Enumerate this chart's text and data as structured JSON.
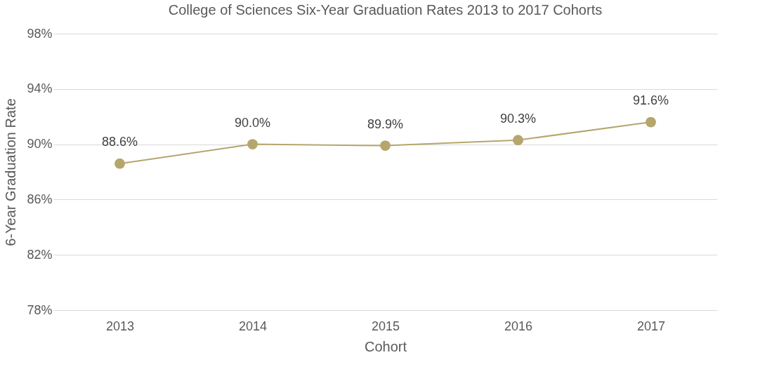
{
  "chart_data": {
    "type": "line",
    "title": "College of Sciences Six-Year Graduation Rates 2013 to 2017 Cohorts",
    "xlabel": "Cohort",
    "ylabel": "6-Year Graduation Rate",
    "categories": [
      "2013",
      "2014",
      "2015",
      "2016",
      "2017"
    ],
    "series": [
      {
        "color": "#b5a66e",
        "values": [
          88.6,
          90.0,
          89.9,
          90.3,
          91.6
        ],
        "value_labels": [
          "88.6%",
          "90.0%",
          "89.9%",
          "90.3%",
          "91.6%"
        ]
      }
    ],
    "ylim": [
      78,
      98
    ],
    "yticks": [
      {
        "value": 78,
        "label": "78%"
      },
      {
        "value": 82,
        "label": "82%"
      },
      {
        "value": 86,
        "label": "86%"
      },
      {
        "value": 90,
        "label": "90%"
      },
      {
        "value": 94,
        "label": "94%"
      },
      {
        "value": 98,
        "label": "98%"
      }
    ],
    "grid": "y",
    "marker": "circle",
    "line_style": "solid"
  }
}
